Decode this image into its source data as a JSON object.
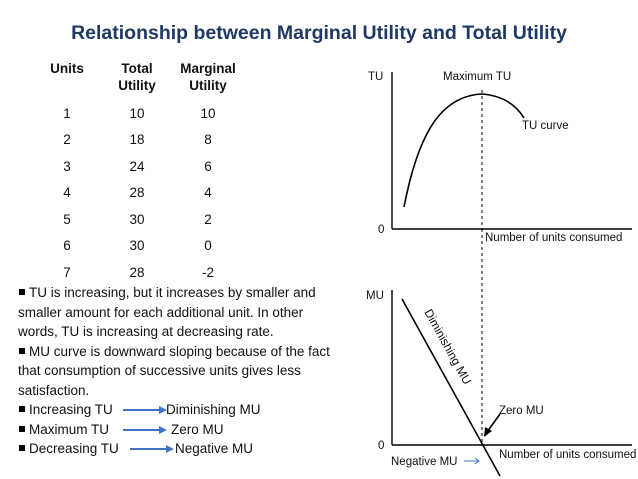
{
  "title": "Relationship between Marginal Utility and Total Utility",
  "table": {
    "headers": [
      [
        "Units"
      ],
      [
        "Total",
        "Utility"
      ],
      [
        "Marginal",
        "Utility"
      ]
    ],
    "rows": [
      [
        "1",
        "10",
        "10"
      ],
      [
        "2",
        "18",
        "8"
      ],
      [
        "3",
        "24",
        "6"
      ],
      [
        "4",
        "28",
        "4"
      ],
      [
        "5",
        "30",
        "2"
      ],
      [
        "6",
        "30",
        "0"
      ],
      [
        "7",
        "28",
        "-2"
      ]
    ]
  },
  "bullets": {
    "p1_line1": "TU is increasing, but it increases by smaller and",
    "p1_line2": "smaller amount for each additional unit. In other",
    "p1_line3": "words, TU is increasing at decreasing rate.",
    "p2_line1": "MU curve is downward sloping because  of the fact",
    "p2_line2": "that consumption of successive units gives less",
    "p2_line3": "satisfaction.",
    "pairs": [
      {
        "left": "Increasing TU",
        "right": "Diminishing MU"
      },
      {
        "left": "Maximum TU",
        "right": "Zero MU"
      },
      {
        "left": "Decreasing TU",
        "right": "Negative MU"
      }
    ]
  },
  "tu_graph": {
    "y_label": "TU",
    "origin_label": "0",
    "x_label": "Number of units consumed",
    "curve_label": "TU curve",
    "max_label": "Maximum TU"
  },
  "mu_graph": {
    "y_label": "MU",
    "origin_label": "0",
    "x_label": "Number of units consumed",
    "line_label": "Diminishing MU",
    "zero_label": "Zero MU",
    "negative_label": "Negative MU"
  },
  "colors": {
    "title": "#1f3864",
    "arrow": "#4472c4"
  }
}
